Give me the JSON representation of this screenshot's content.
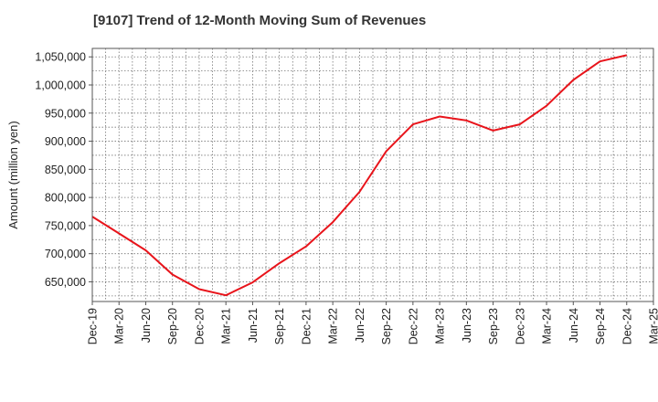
{
  "chart_data": {
    "type": "line",
    "title": "[9107]  Trend of 12-Month Moving Sum of Revenues",
    "ylabel": "Amount (million yen)",
    "xlabel": "",
    "x": [
      "Dec-19",
      "Mar-20",
      "Jun-20",
      "Sep-20",
      "Dec-20",
      "Mar-21",
      "Jun-21",
      "Sep-21",
      "Dec-21",
      "Mar-22",
      "Jun-22",
      "Sep-22",
      "Dec-22",
      "Mar-23",
      "Jun-23",
      "Sep-23",
      "Dec-23",
      "Mar-24",
      "Jun-24",
      "Sep-24",
      "Dec-24",
      "Mar-25"
    ],
    "ylim": [
      615000,
      1065000
    ],
    "yticks": [
      650000,
      700000,
      750000,
      800000,
      850000,
      900000,
      950000,
      1000000,
      1050000
    ],
    "ytick_labels": [
      "650,000",
      "700,000",
      "750,000",
      "800,000",
      "850,000",
      "900,000",
      "950,000",
      "1,000,000",
      "1,050,000"
    ],
    "grid": true,
    "series": [
      {
        "color": "#e8141b",
        "values": [
          766000,
          736000,
          706000,
          663000,
          637000,
          626000,
          649000,
          683000,
          713000,
          756000,
          810000,
          882000,
          930000,
          944000,
          937000,
          919000,
          930000,
          963000,
          1009000,
          1042000,
          1053000,
          null
        ]
      }
    ]
  }
}
